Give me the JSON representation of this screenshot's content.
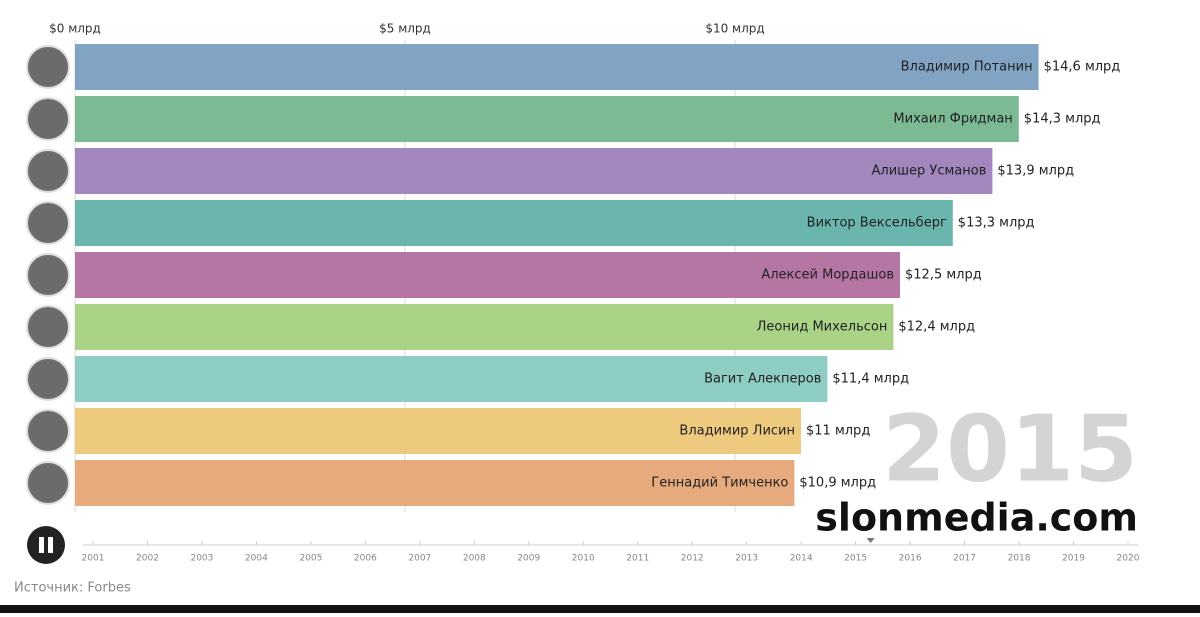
{
  "chart_data": {
    "type": "bar",
    "orientation": "horizontal",
    "categories": [
      "Владимир Потанин",
      "Михаил Фридман",
      "Алишер Усманов",
      "Виктор Вексельберг",
      "Алексей Мордашов",
      "Леонид Михельсон",
      "Вагит Алекперов",
      "Владимир Лисин",
      "Геннадий Тимченко"
    ],
    "values": [
      14.6,
      14.3,
      13.9,
      13.3,
      12.5,
      12.4,
      11.4,
      11,
      10.9
    ],
    "value_labels": [
      "$14,6 млрд",
      "$14,3 млрд",
      "$13,9 млрд",
      "$13,3 млрд",
      "$12,5 млрд",
      "$12,4 млрд",
      "$11,4 млрд",
      "$11 млрд",
      "$10,9 млрд"
    ],
    "colors": [
      "#7b9fc1",
      "#74b68d",
      "#9c81ba",
      "#62b1a9",
      "#b26f9f",
      "#a5d181",
      "#88cac0",
      "#edc778",
      "#e5a576"
    ],
    "xlim": [
      0,
      16
    ],
    "xticks": [
      {
        "value": 0,
        "label": "$0 млрд"
      },
      {
        "value": 5,
        "label": "$5 млрд"
      },
      {
        "value": 10,
        "label": "$10 млрд"
      }
    ],
    "grid": true,
    "year": 2015,
    "watermark": "slonmedia.com",
    "timeline": [
      2001,
      2002,
      2003,
      2004,
      2005,
      2006,
      2007,
      2008,
      2009,
      2010,
      2011,
      2012,
      2013,
      2014,
      2015,
      2016,
      2017,
      2018,
      2019,
      2020
    ],
    "source": "Источник: Forbes"
  }
}
